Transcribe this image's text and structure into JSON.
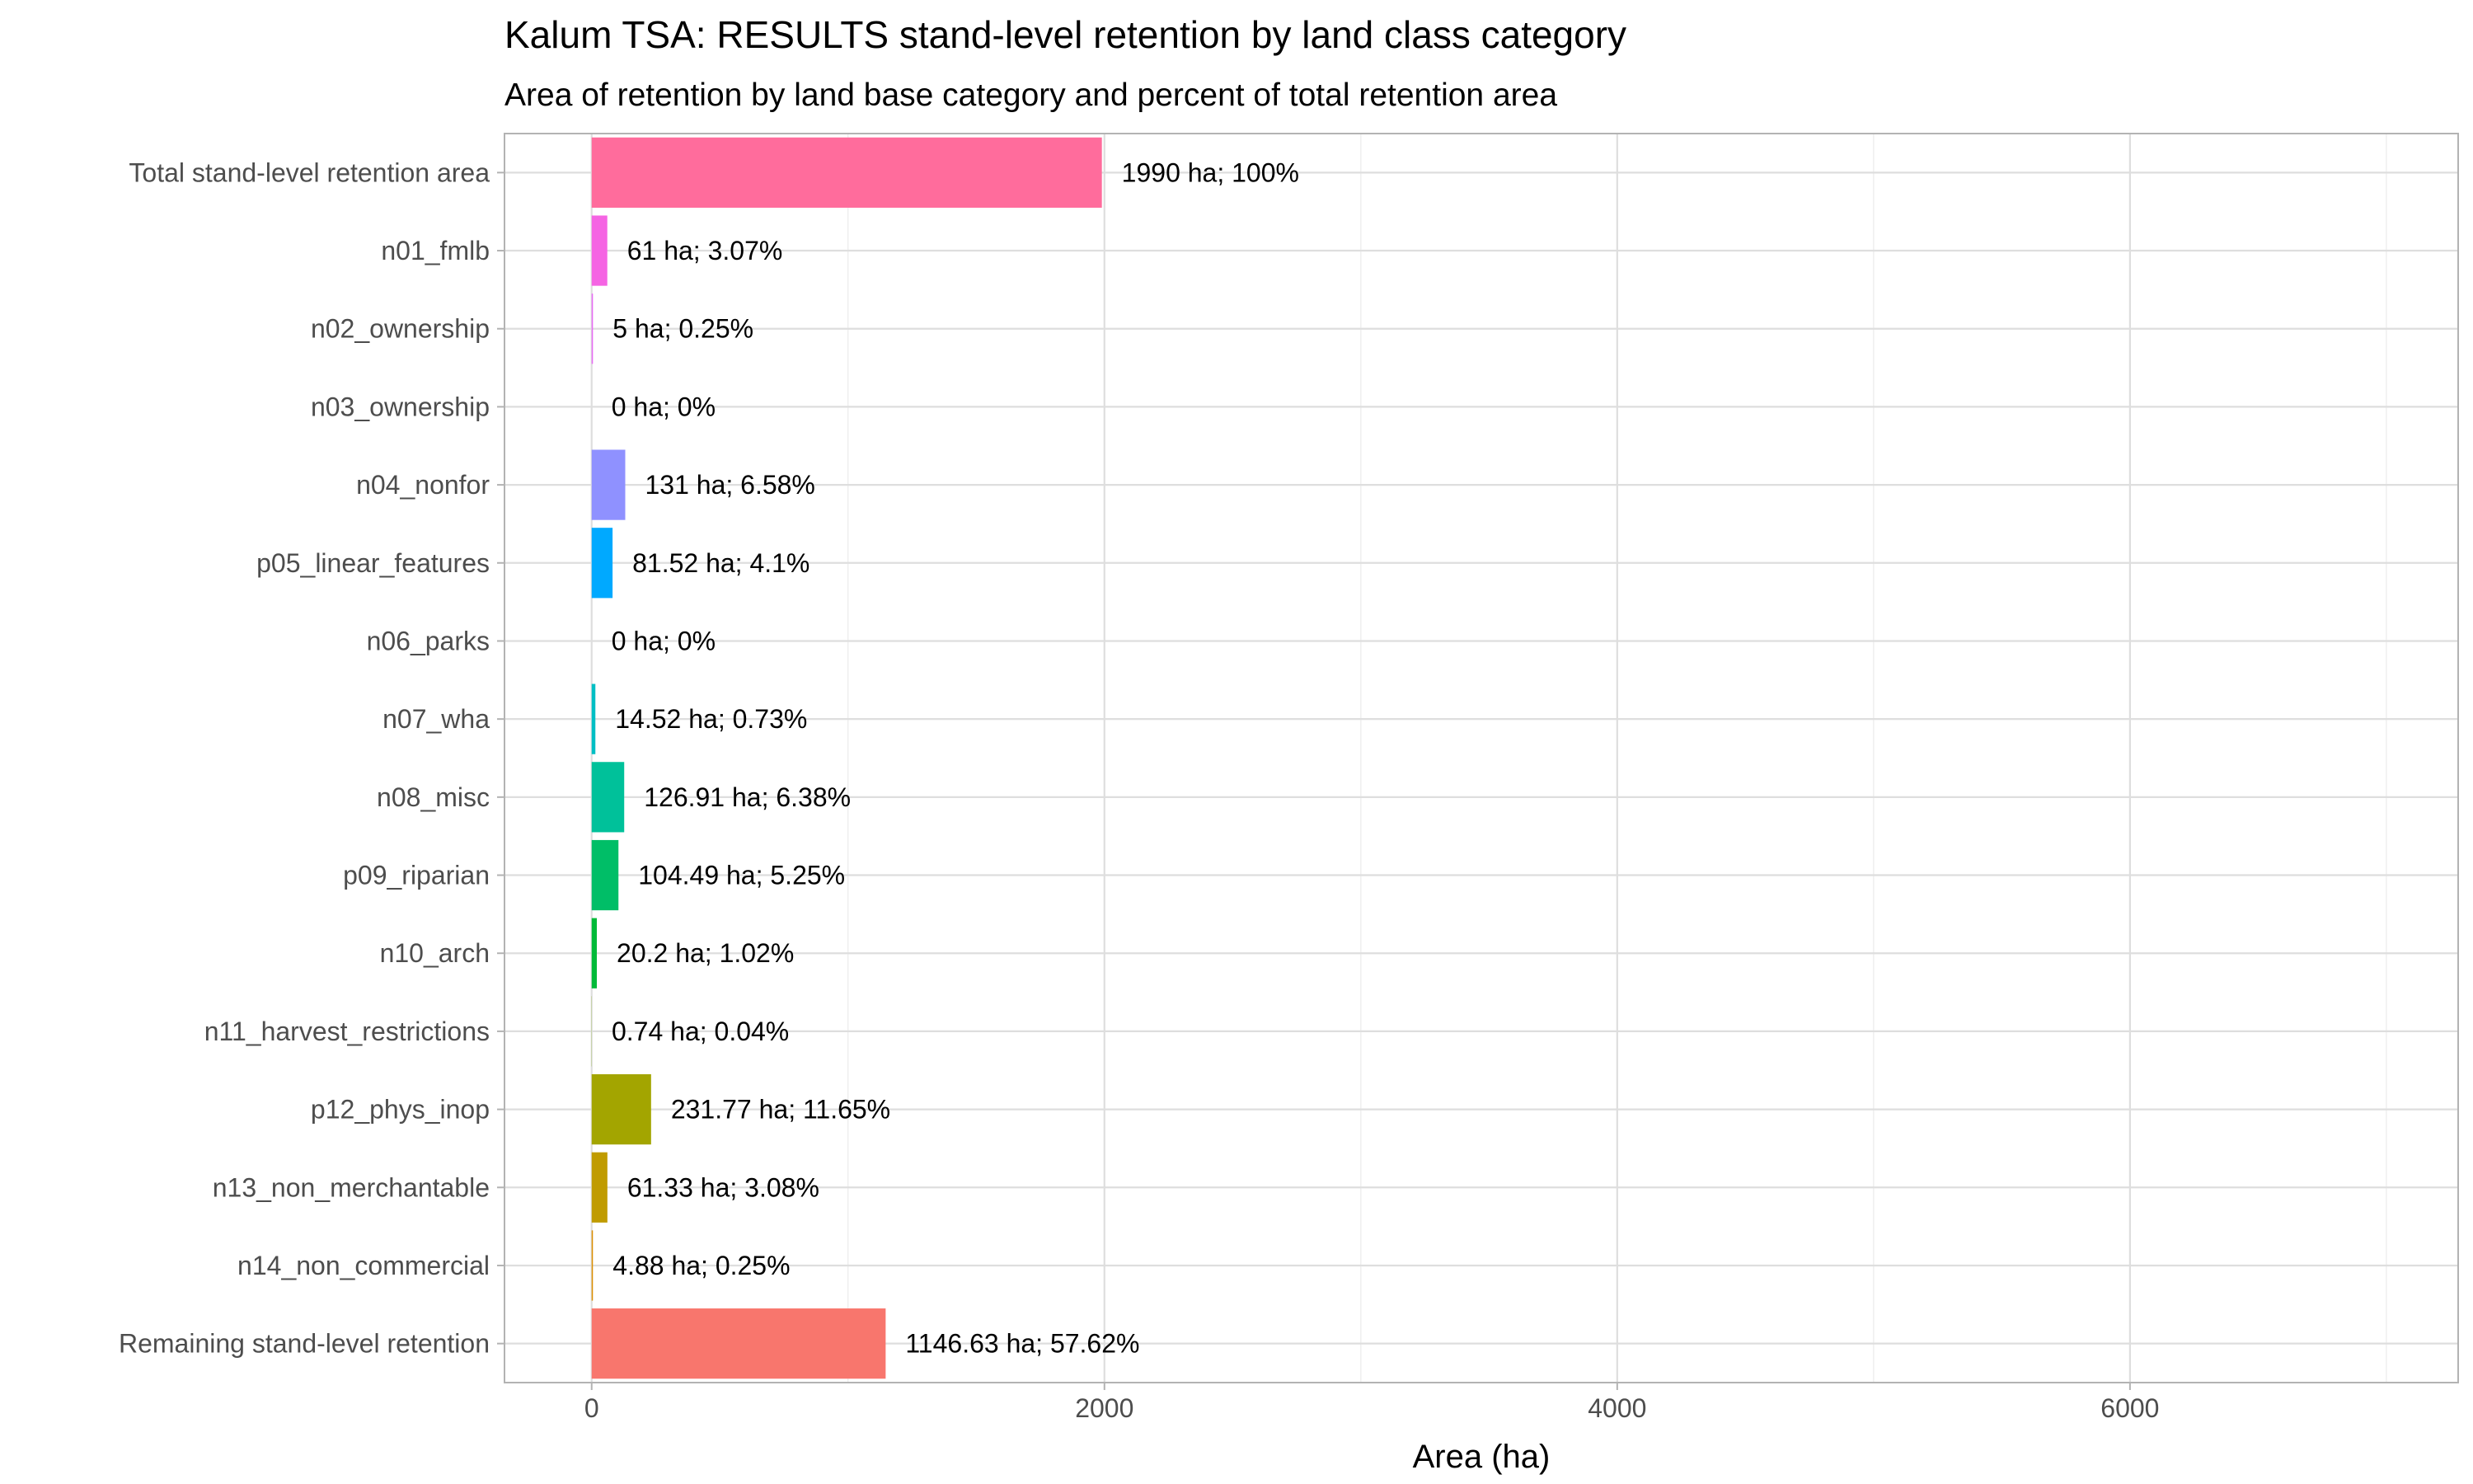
{
  "chart_data": {
    "type": "bar",
    "orientation": "horizontal",
    "title": "Kalum TSA: RESULTS stand-level retention by land class category",
    "subtitle": "Area of retention by land base category and percent of total retention area",
    "xlabel": "Area (ha)",
    "ylabel": "",
    "xlim": [
      -340,
      7280
    ],
    "x_ticks": [
      0,
      2000,
      4000,
      6000
    ],
    "grid": true,
    "legend": "none",
    "categories": [
      "Total stand-level retention area",
      "n01_fmlb",
      "n02_ownership",
      "n03_ownership",
      "n04_nonfor",
      "p05_linear_features",
      "n06_parks",
      "n07_wha",
      "n08_misc",
      "p09_riparian",
      "n10_arch",
      "n11_harvest_restrictions",
      "p12_phys_inop",
      "n13_non_merchantable",
      "n14_non_commercial",
      "Remaining stand-level retention"
    ],
    "values": [
      1990,
      61,
      5,
      0,
      131,
      81.52,
      0,
      14.52,
      126.91,
      104.49,
      20.2,
      0.74,
      231.77,
      61.33,
      4.88,
      1146.63
    ],
    "data_labels": [
      "1990 ha; 100%",
      "61 ha; 3.07%",
      "5 ha; 0.25%",
      "0 ha; 0%",
      "131 ha; 6.58%",
      "81.52 ha; 4.1%",
      "0 ha; 0%",
      "14.52 ha; 0.73%",
      "126.91 ha; 6.38%",
      "104.49 ha; 5.25%",
      "20.2 ha; 1.02%",
      "0.74 ha; 0.04%",
      "231.77 ha; 11.65%",
      "61.33 ha; 3.08%",
      "4.88 ha; 0.25%",
      "1146.63 ha; 57.62%"
    ],
    "colors": [
      "#FF6C9C",
      "#F564E3",
      "#E76BF3",
      "#C77CFF",
      "#8F91FF",
      "#00A9FF",
      "#00BCD8",
      "#00BFC4",
      "#00C19A",
      "#00BE67",
      "#00BA38",
      "#7CAE00",
      "#A3A500",
      "#C09B00",
      "#DB8E00",
      "#F8766D"
    ]
  }
}
